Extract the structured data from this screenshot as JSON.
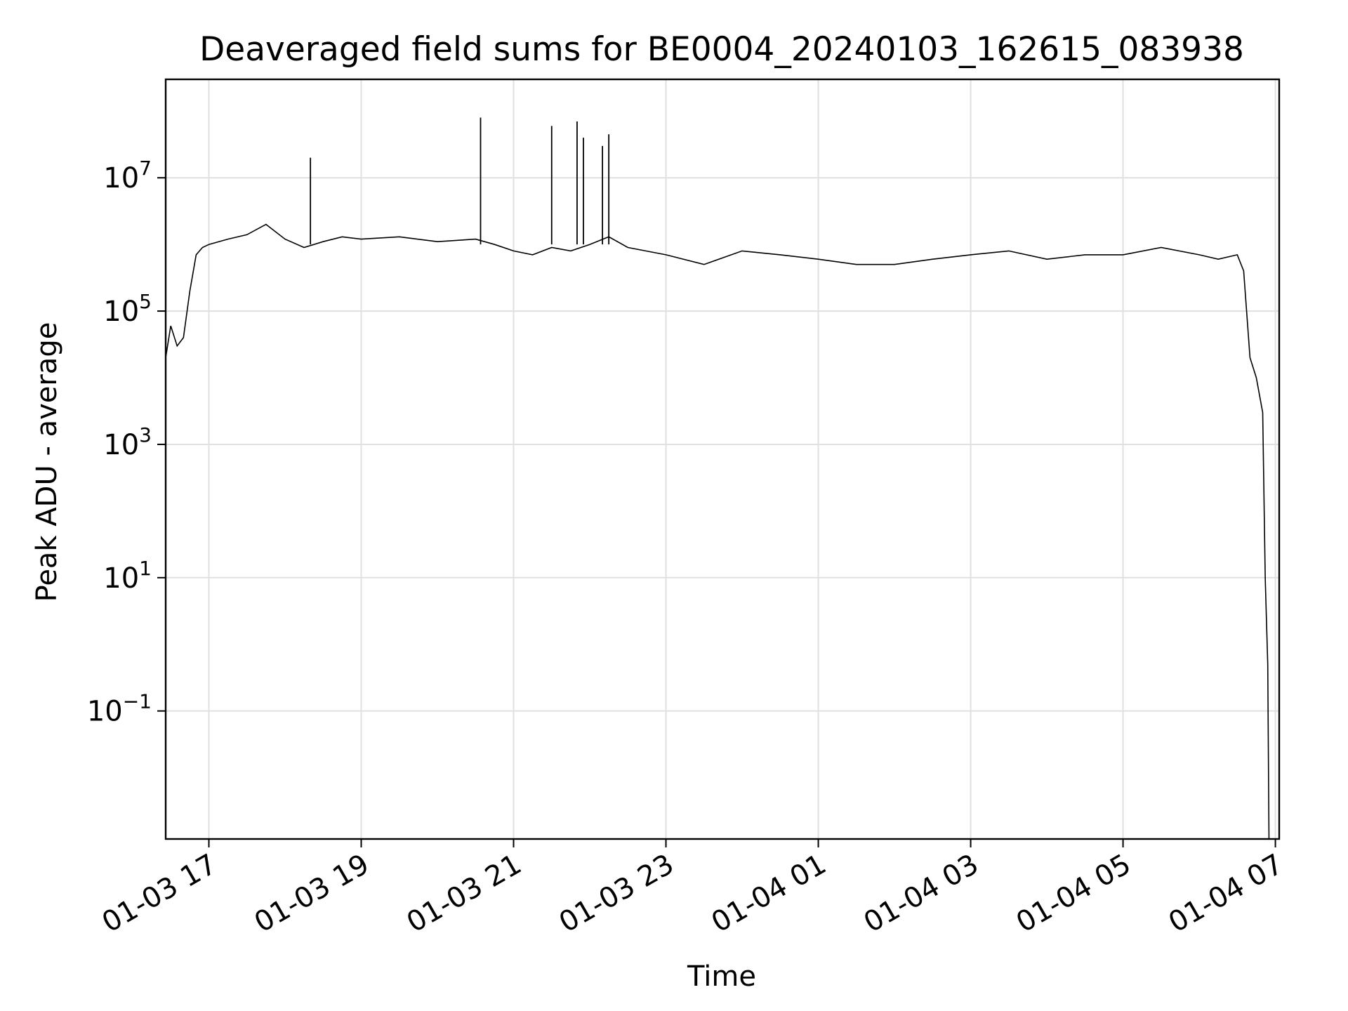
{
  "chart_data": {
    "type": "line",
    "title": "Deaveraged field sums for BE0004_20240103_162615_083938",
    "xlabel": "Time",
    "ylabel": "Peak ADU - average",
    "x_range": [
      "2024-01-03 16:26",
      "2024-01-04 07:03"
    ],
    "y_scale": "log",
    "y_range": [
      0.0012,
      300000000
    ],
    "grid": true,
    "line_color": "#000000",
    "x_ticks": [
      {
        "value": "2024-01-03 17:00",
        "label": "01-03 17"
      },
      {
        "value": "2024-01-03 19:00",
        "label": "01-03 19"
      },
      {
        "value": "2024-01-03 21:00",
        "label": "01-03 21"
      },
      {
        "value": "2024-01-03 23:00",
        "label": "01-03 23"
      },
      {
        "value": "2024-01-04 01:00",
        "label": "01-04 01"
      },
      {
        "value": "2024-01-04 03:00",
        "label": "01-04 03"
      },
      {
        "value": "2024-01-04 05:00",
        "label": "01-04 05"
      },
      {
        "value": "2024-01-04 07:00",
        "label": "01-04 07"
      }
    ],
    "y_ticks": [
      {
        "value": 0.1,
        "base": "10",
        "exp": "−1"
      },
      {
        "value": 10,
        "base": "10",
        "exp": "1"
      },
      {
        "value": 1000,
        "base": "10",
        "exp": "3"
      },
      {
        "value": 100000,
        "base": "10",
        "exp": "5"
      },
      {
        "value": 10000000,
        "base": "10",
        "exp": "7"
      }
    ],
    "series": [
      {
        "x": [
          "2024-01-03 16:26",
          "2024-01-03 16:30",
          "2024-01-03 16:35",
          "2024-01-03 16:40",
          "2024-01-03 16:45",
          "2024-01-03 16:50",
          "2024-01-03 16:55",
          "2024-01-03 17:00",
          "2024-01-03 17:15",
          "2024-01-03 17:30",
          "2024-01-03 17:45",
          "2024-01-03 18:00",
          "2024-01-03 18:15",
          "2024-01-03 18:30",
          "2024-01-03 18:45",
          "2024-01-03 19:00",
          "2024-01-03 19:30",
          "2024-01-03 20:00",
          "2024-01-03 20:30",
          "2024-01-03 20:45",
          "2024-01-03 21:00",
          "2024-01-03 21:15",
          "2024-01-03 21:30",
          "2024-01-03 21:45",
          "2024-01-03 22:00",
          "2024-01-03 22:15",
          "2024-01-03 22:30",
          "2024-01-03 23:00",
          "2024-01-03 23:30",
          "2024-01-04 00:00",
          "2024-01-04 00:30",
          "2024-01-04 01:00",
          "2024-01-04 01:30",
          "2024-01-04 02:00",
          "2024-01-04 02:30",
          "2024-01-04 03:00",
          "2024-01-04 03:30",
          "2024-01-04 04:00",
          "2024-01-04 04:30",
          "2024-01-04 05:00",
          "2024-01-04 05:30",
          "2024-01-04 06:00",
          "2024-01-04 06:15",
          "2024-01-04 06:30",
          "2024-01-04 06:35",
          "2024-01-04 06:40",
          "2024-01-04 06:45",
          "2024-01-04 06:50",
          "2024-01-04 06:52",
          "2024-01-04 06:54",
          "2024-01-04 06:55"
        ],
        "y": [
          20000,
          60000,
          30000,
          40000,
          200000,
          700000,
          900000,
          1000000,
          1200000,
          1400000,
          2000000,
          1200000,
          900000,
          1100000,
          1300000,
          1200000,
          1300000,
          1100000,
          1200000,
          1000000,
          800000,
          700000,
          900000,
          800000,
          1000000,
          1300000,
          900000,
          700000,
          500000,
          800000,
          700000,
          600000,
          500000,
          500000,
          600000,
          700000,
          800000,
          600000,
          700000,
          700000,
          900000,
          700000,
          600000,
          700000,
          400000,
          20000,
          10000,
          3000,
          10,
          0.5,
          0.001
        ]
      }
    ],
    "spikes": [
      {
        "x": "2024-01-03 18:20",
        "y": 20000000
      },
      {
        "x": "2024-01-03 20:34",
        "y": 80000000
      },
      {
        "x": "2024-01-03 21:30",
        "y": 60000000
      },
      {
        "x": "2024-01-03 21:50",
        "y": 70000000
      },
      {
        "x": "2024-01-03 21:55",
        "y": 40000000
      },
      {
        "x": "2024-01-03 22:10",
        "y": 30000000
      },
      {
        "x": "2024-01-03 22:15",
        "y": 45000000
      }
    ]
  }
}
